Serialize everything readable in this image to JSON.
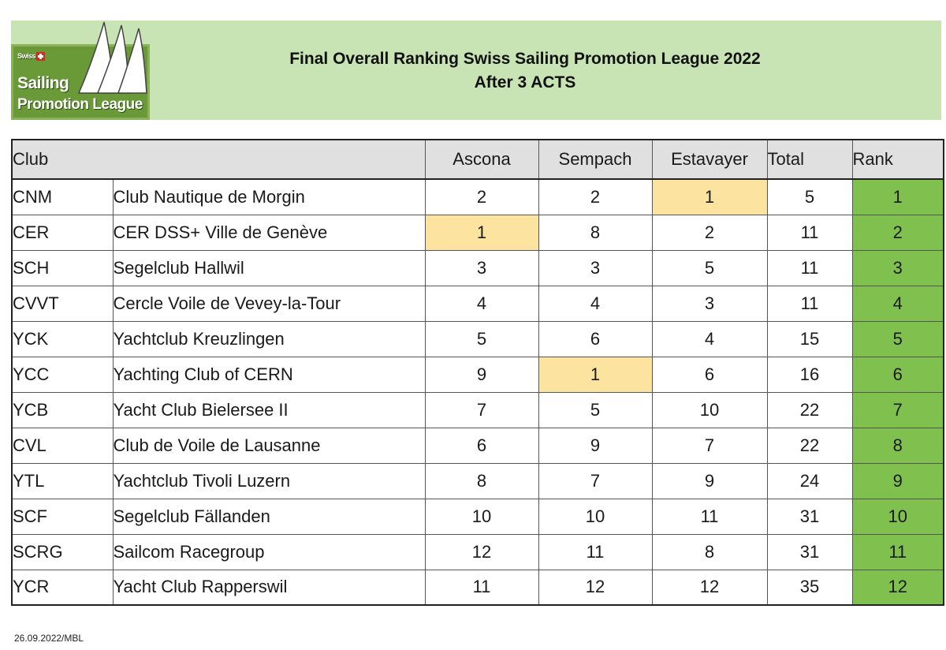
{
  "header": {
    "title_line1": "Final Overall Ranking Swiss Sailing Promotion League 2022",
    "title_line2": "After 3 ACTS",
    "logo": {
      "line1": "Swiss",
      "line2": "Sailing",
      "line3": "Promotion League"
    }
  },
  "columns": {
    "club": "Club",
    "ascona": "Ascona",
    "sempach": "Sempach",
    "estavayer": "Estavayer",
    "total": "Total",
    "rank": "Rank"
  },
  "rows": [
    {
      "code": "CNM",
      "name": "Club Nautique de Morgin",
      "ascona": "2",
      "sempach": "2",
      "estavayer": "1",
      "total": "5",
      "rank": "1"
    },
    {
      "code": "CER",
      "name": "CER DSS+ Ville de Genève",
      "ascona": "1",
      "sempach": "8",
      "estavayer": "2",
      "total": "11",
      "rank": "2"
    },
    {
      "code": "SCH",
      "name": "Segelclub Hallwil",
      "ascona": "3",
      "sempach": "3",
      "estavayer": "5",
      "total": "11",
      "rank": "3"
    },
    {
      "code": "CVVT",
      "name": "Cercle Voile de Vevey-la-Tour",
      "ascona": "4",
      "sempach": "4",
      "estavayer": "3",
      "total": "11",
      "rank": "4"
    },
    {
      "code": "YCK",
      "name": "Yachtclub Kreuzlingen",
      "ascona": "5",
      "sempach": "6",
      "estavayer": "4",
      "total": "15",
      "rank": "5"
    },
    {
      "code": "YCC",
      "name": "Yachting Club of CERN",
      "ascona": "9",
      "sempach": "1",
      "estavayer": "6",
      "total": "16",
      "rank": "6"
    },
    {
      "code": "YCB",
      "name": "Yacht Club Bielersee II",
      "ascona": "7",
      "sempach": "5",
      "estavayer": "10",
      "total": "22",
      "rank": "7"
    },
    {
      "code": "CVL",
      "name": "Club de Voile de Lausanne",
      "ascona": "6",
      "sempach": "9",
      "estavayer": "7",
      "total": "22",
      "rank": "8"
    },
    {
      "code": "YTL",
      "name": "Yachtclub Tivoli Luzern",
      "ascona": "8",
      "sempach": "7",
      "estavayer": "9",
      "total": "24",
      "rank": "9"
    },
    {
      "code": "SCF",
      "name": "Segelclub Fällanden",
      "ascona": "10",
      "sempach": "10",
      "estavayer": "11",
      "total": "31",
      "rank": "10"
    },
    {
      "code": "SCRG",
      "name": "Sailcom Racegroup",
      "ascona": "12",
      "sempach": "11",
      "estavayer": "8",
      "total": "31",
      "rank": "11"
    },
    {
      "code": "YCR",
      "name": "Yacht Club Rapperswil",
      "ascona": "11",
      "sempach": "12",
      "estavayer": "12",
      "total": "35",
      "rank": "12"
    }
  ],
  "colors": {
    "header_bg": "#c8e3b4",
    "rank_bg": "#7fc04e",
    "best_result_bg": "#fde3a0",
    "table_header_bg": "#e0e0e0"
  },
  "footer": {
    "stamp": "26.09.2022/MBL"
  }
}
